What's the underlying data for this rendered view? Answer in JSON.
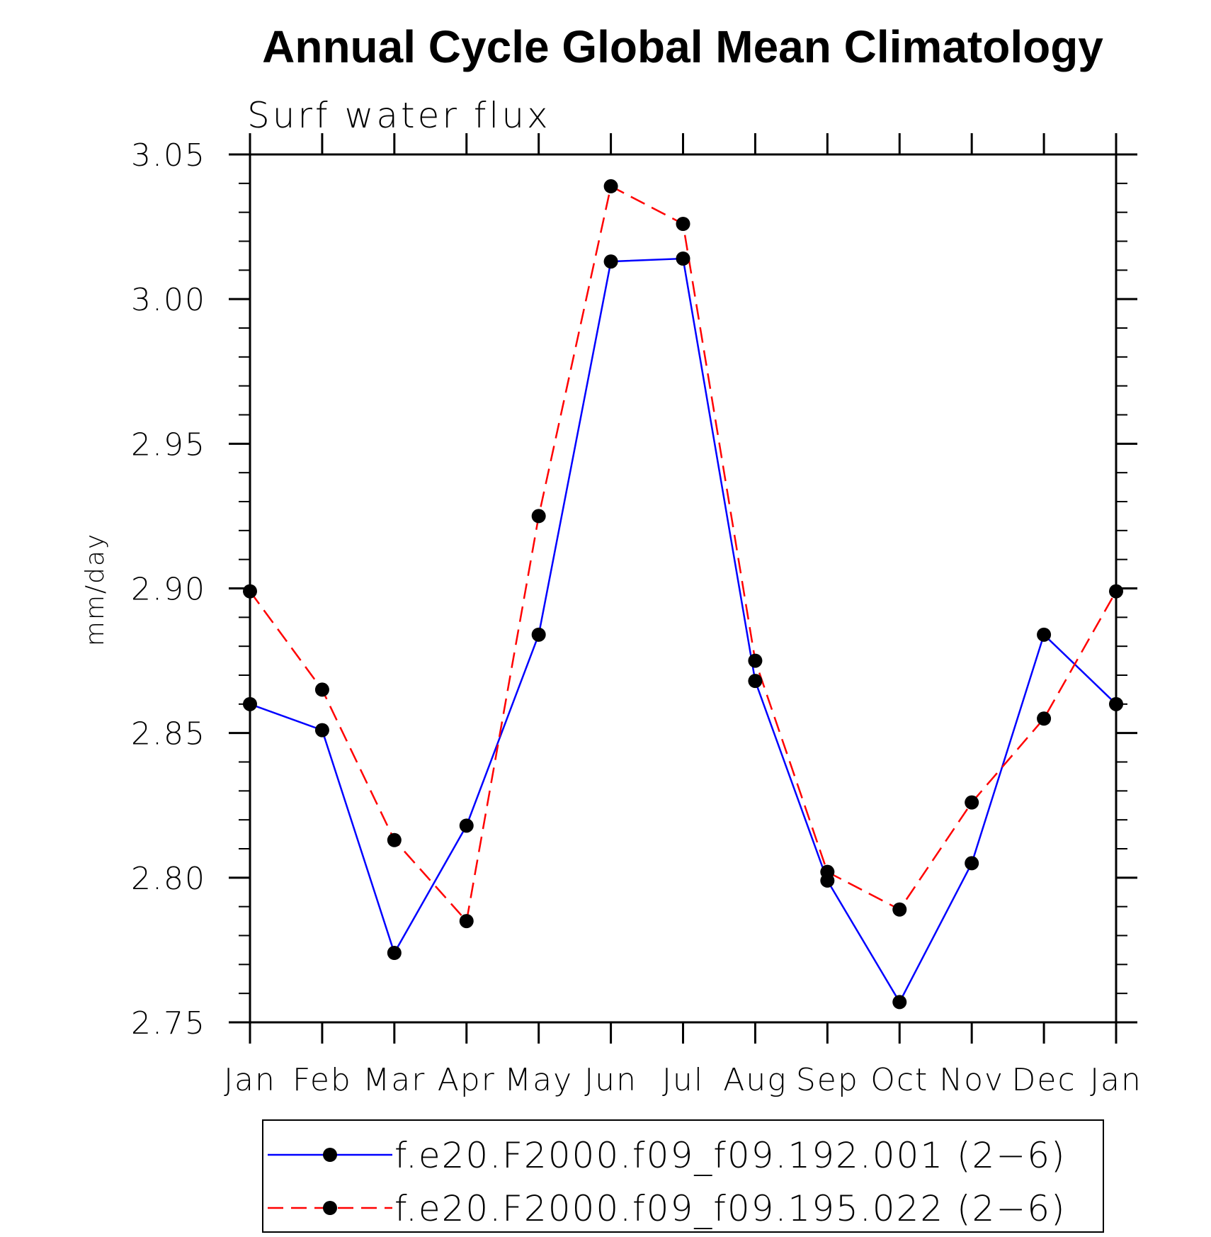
{
  "chart_data": {
    "type": "line",
    "title": "Annual Cycle Global Mean Climatology",
    "subtitle": "Surf water flux",
    "xlabel": "",
    "ylabel": "mm/day",
    "categories": [
      "Jan",
      "Feb",
      "Mar",
      "Apr",
      "May",
      "Jun",
      "Jul",
      "Aug",
      "Sep",
      "Oct",
      "Nov",
      "Dec",
      "Jan"
    ],
    "ylim": [
      2.75,
      3.05
    ],
    "yticks": [
      "2.75",
      "2.80",
      "2.85",
      "2.90",
      "2.95",
      "3.00",
      "3.05"
    ],
    "ytick_values": [
      2.75,
      2.8,
      2.85,
      2.9,
      2.95,
      3.0,
      3.05
    ],
    "grid": false,
    "legend_position": "bottom",
    "series": [
      {
        "name": "f.e20.F2000.f09_f09.192.001 (2−6)",
        "color": "#0000ff",
        "style": "solid",
        "marker": "filled-circle",
        "values": [
          2.86,
          2.851,
          2.774,
          2.818,
          2.884,
          3.013,
          3.014,
          2.868,
          2.799,
          2.757,
          2.805,
          2.884,
          2.86
        ]
      },
      {
        "name": "f.e20.F2000.f09_f09.195.022 (2−6)",
        "color": "#ff0000",
        "style": "dashed",
        "marker": "filled-circle",
        "values": [
          2.899,
          2.865,
          2.813,
          2.785,
          2.925,
          3.039,
          3.026,
          2.875,
          2.802,
          2.789,
          2.826,
          2.855,
          2.899
        ]
      }
    ]
  }
}
